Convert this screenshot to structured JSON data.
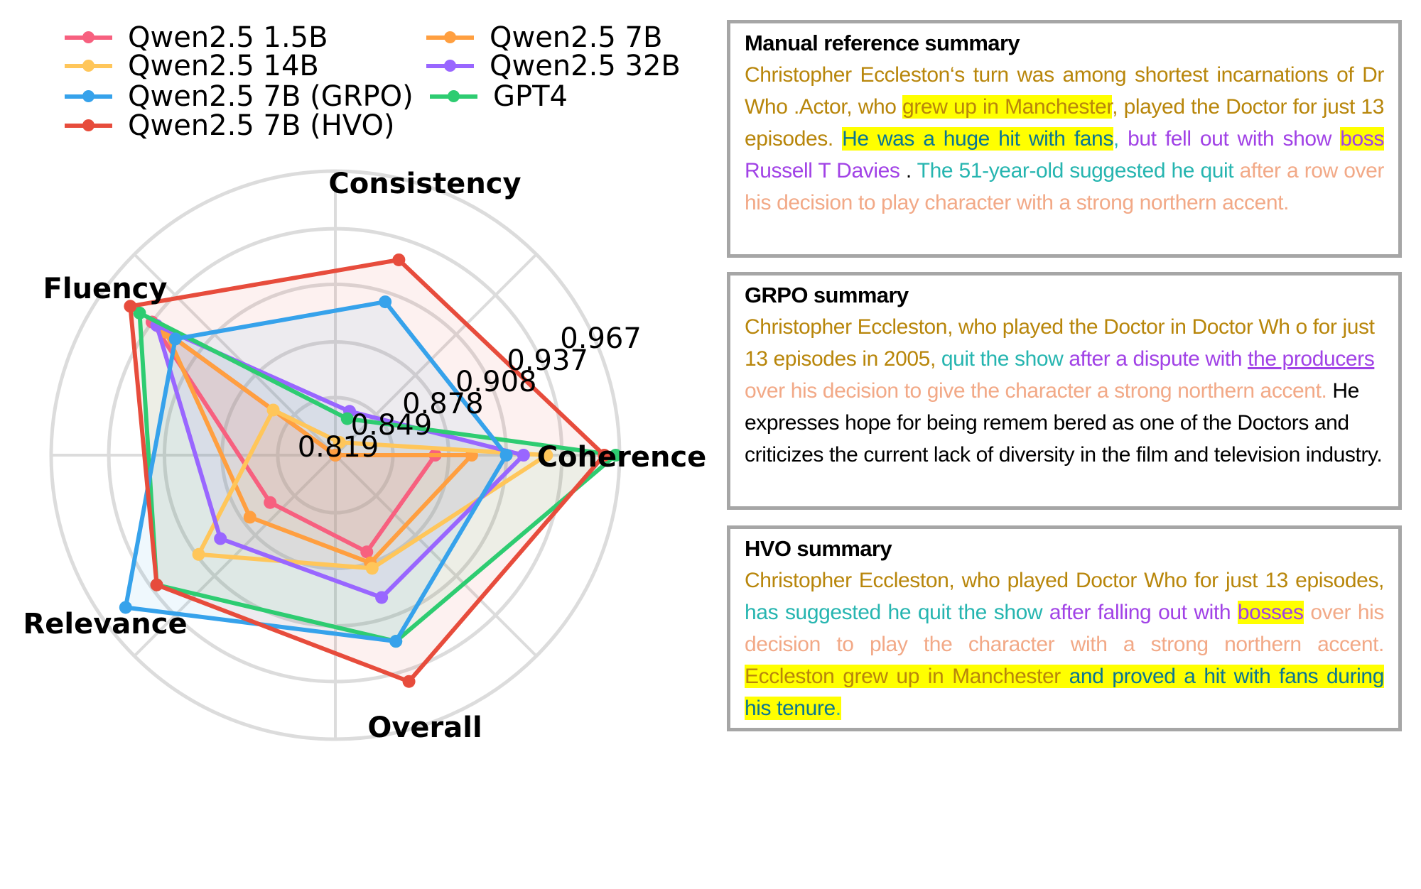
{
  "chart_data": {
    "type": "radar",
    "axes": [
      "Consistency",
      "Coherence",
      "Overall",
      "Relevance",
      "Fluency"
    ],
    "radial_ticks": [
      "0.819",
      "0.849",
      "0.878",
      "0.908",
      "0.937",
      "0.967"
    ],
    "radial_range": [
      0.819,
      0.967
    ],
    "grid": true,
    "legend_position": "top-left",
    "series": [
      {
        "name": "Qwen2.5 1.5B",
        "color": "#f7607f",
        "values": {
          "Consistency": 0.819,
          "Coherence": 0.871,
          "Overall": 0.872,
          "Relevance": 0.861,
          "Fluency": 0.937
        }
      },
      {
        "name": "Qwen2.5 7B",
        "color": "#ff9f40",
        "values": {
          "Consistency": 0.819,
          "Coherence": 0.89,
          "Overall": 0.878,
          "Relevance": 0.874,
          "Fluency": 0.928
        }
      },
      {
        "name": "Qwen2.5 14B",
        "color": "#ffc65a",
        "values": {
          "Consistency": 0.826,
          "Coherence": 0.929,
          "Overall": 0.881,
          "Relevance": 0.907,
          "Fluency": 0.859
        }
      },
      {
        "name": "Qwen2.5 32B",
        "color": "#9966ff",
        "values": {
          "Consistency": 0.843,
          "Coherence": 0.917,
          "Overall": 0.897,
          "Relevance": 0.893,
          "Fluency": 0.934
        }
      },
      {
        "name": "Qwen2.5 7B (GRPO)",
        "color": "#36a2eb",
        "values": {
          "Consistency": 0.903,
          "Coherence": 0.908,
          "Overall": 0.921,
          "Relevance": 0.954,
          "Fluency": 0.922
        }
      },
      {
        "name": "GPT4",
        "color": "#2ecc71",
        "values": {
          "Consistency": 0.839,
          "Coherence": 0.965,
          "Overall": 0.921,
          "Relevance": 0.934,
          "Fluency": 0.945
        }
      },
      {
        "name": "Qwen2.5 7B (HVO)",
        "color": "#e74c3c",
        "values": {
          "Consistency": 0.926,
          "Coherence": 0.959,
          "Overall": 0.943,
          "Relevance": 0.934,
          "Fluency": 0.951
        }
      }
    ],
    "legend_order": [
      "Qwen2.5 1.5B",
      "Qwen2.5 14B",
      "Qwen2.5 7B (GRPO)",
      "Qwen2.5 7B (HVO)",
      "Qwen2.5 7B",
      "Qwen2.5 32B",
      "GPT4"
    ]
  },
  "summaries": {
    "reference": {
      "title": "Manual reference summary",
      "segments": [
        {
          "text": "Christopher Eccleston‘s turn was among shortest incarnations of Dr Who .Actor, who ",
          "color": "gold",
          "highlight": false
        },
        {
          "text": "grew up in Manchester",
          "color": "gold",
          "highlight": true
        },
        {
          "text": ", played the Doctor for just 13 episodes. ",
          "color": "gold",
          "highlight": false
        },
        {
          "text": "He was a huge hit with fans",
          "color": "darkteal",
          "highlight": true
        },
        {
          "text": ", ",
          "color": "teal",
          "highlight": false
        },
        {
          "text": "but fell out with show ",
          "color": "purple",
          "highlight": false
        },
        {
          "text": "boss",
          "color": "purple",
          "highlight": true
        },
        {
          "text": " Russell T Davies",
          "color": "purple",
          "highlight": false
        },
        {
          "text": " . ",
          "color": "black",
          "highlight": false
        },
        {
          "text": "The 51-year-old suggested he quit ",
          "color": "teal",
          "highlight": false
        },
        {
          "text": "after a row over his decision to play character with a strong northern accent.",
          "color": "salmon",
          "highlight": false
        }
      ]
    },
    "grpo": {
      "title": "GRPO summary",
      "segments": [
        {
          "text": "Christopher Eccleston, who played the Doctor in Doctor Wh o for just 13 episodes in 2005, ",
          "color": "gold",
          "highlight": false
        },
        {
          "text": "quit the show ",
          "color": "teal",
          "highlight": false
        },
        {
          "text": "after a dispute with ",
          "color": "purple",
          "highlight": false
        },
        {
          "text": "the producers ",
          "color": "purple",
          "highlight": false,
          "underline": true
        },
        {
          "text": "over his decision to give the character a strong northern accent. ",
          "color": "salmon",
          "highlight": false
        },
        {
          "text": "He expresses hope for being remem bered as one of the Doctors and criticizes the current lack of diversity in the film and television industry.",
          "color": "black",
          "highlight": false
        }
      ]
    },
    "hvo": {
      "title": "HVO summary",
      "segments": [
        {
          "text": "Christopher Eccleston, who played Doctor Who for just 13 episodes, ",
          "color": "gold",
          "highlight": false
        },
        {
          "text": "has suggested he quit the show ",
          "color": "teal",
          "highlight": false
        },
        {
          "text": "after falling out with ",
          "color": "purple",
          "highlight": false
        },
        {
          "text": "bosses",
          "color": "purple",
          "highlight": true
        },
        {
          "text": " over his decision to play the character with a strong northern accent. ",
          "color": "salmon",
          "highlight": false
        },
        {
          "text": "Eccleston grew up in Manchester ",
          "color": "gold",
          "highlight": true
        },
        {
          "text": "and proved a hit with fans during his tenure",
          "color": "darkteal",
          "highlight": true
        },
        {
          "text": ".",
          "color": "teal",
          "highlight": true
        }
      ]
    }
  }
}
